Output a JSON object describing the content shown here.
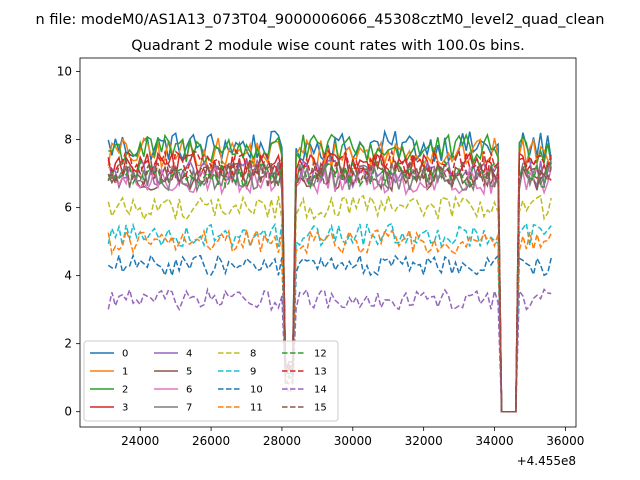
{
  "chart_data": {
    "type": "line",
    "suptitle": "n file: modeM0/AS1A13_073T04_9000006066_45308cztM0_level2_quad_clean",
    "title": "Quadrant 2 module wise count rates with 100.0s bins.",
    "xlabel": "",
    "ylabel": "",
    "x_offset_label": "+4.455e8",
    "x_ticks": [
      24000,
      26000,
      28000,
      30000,
      32000,
      34000,
      36000
    ],
    "y_ticks": [
      0,
      2,
      4,
      6,
      8,
      10
    ],
    "xlim": [
      22300,
      36300
    ],
    "ylim": [
      -0.45,
      10.4
    ],
    "grid": false,
    "legend_position": "lower-left",
    "legend_columns": 4,
    "x_range": [
      23100,
      35600
    ],
    "step": 100,
    "gaps": [
      {
        "x": [
          28050,
          28350
        ],
        "mode": "dip_low"
      },
      {
        "x": [
          34200,
          34600
        ],
        "mode": "zero"
      }
    ],
    "series": [
      {
        "name": "0",
        "color": "#1f77b4",
        "dash": "solid",
        "base": 7.8,
        "noise": 0.45
      },
      {
        "name": "1",
        "color": "#ff7f0e",
        "dash": "solid",
        "base": 7.6,
        "noise": 0.45
      },
      {
        "name": "2",
        "color": "#2ca02c",
        "dash": "solid",
        "base": 7.7,
        "noise": 0.45
      },
      {
        "name": "3",
        "color": "#d62728",
        "dash": "solid",
        "base": 7.2,
        "noise": 0.4
      },
      {
        "name": "4",
        "color": "#9467bd",
        "dash": "solid",
        "base": 7.0,
        "noise": 0.4
      },
      {
        "name": "5",
        "color": "#8c564b",
        "dash": "solid",
        "base": 6.9,
        "noise": 0.4
      },
      {
        "name": "6",
        "color": "#e377c2",
        "dash": "solid",
        "base": 6.8,
        "noise": 0.4
      },
      {
        "name": "7",
        "color": "#7f7f7f",
        "dash": "solid",
        "base": 6.9,
        "noise": 0.4
      },
      {
        "name": "8",
        "color": "#bcbd22",
        "dash": "dashed",
        "base": 6.0,
        "noise": 0.35
      },
      {
        "name": "9",
        "color": "#17becf",
        "dash": "dashed",
        "base": 5.2,
        "noise": 0.35
      },
      {
        "name": "10",
        "color": "#1f77b4",
        "dash": "dashed",
        "base": 4.3,
        "noise": 0.3
      },
      {
        "name": "11",
        "color": "#ff7f0e",
        "dash": "dashed",
        "base": 5.0,
        "noise": 0.35
      },
      {
        "name": "12",
        "color": "#2ca02c",
        "dash": "dashed",
        "base": 7.0,
        "noise": 0.4
      },
      {
        "name": "13",
        "color": "#d62728",
        "dash": "dashed",
        "base": 7.3,
        "noise": 0.4
      },
      {
        "name": "14",
        "color": "#9467bd",
        "dash": "dashed",
        "base": 3.3,
        "noise": 0.3
      },
      {
        "name": "15",
        "color": "#8c564b",
        "dash": "dashed",
        "base": 7.0,
        "noise": 0.4
      }
    ]
  }
}
